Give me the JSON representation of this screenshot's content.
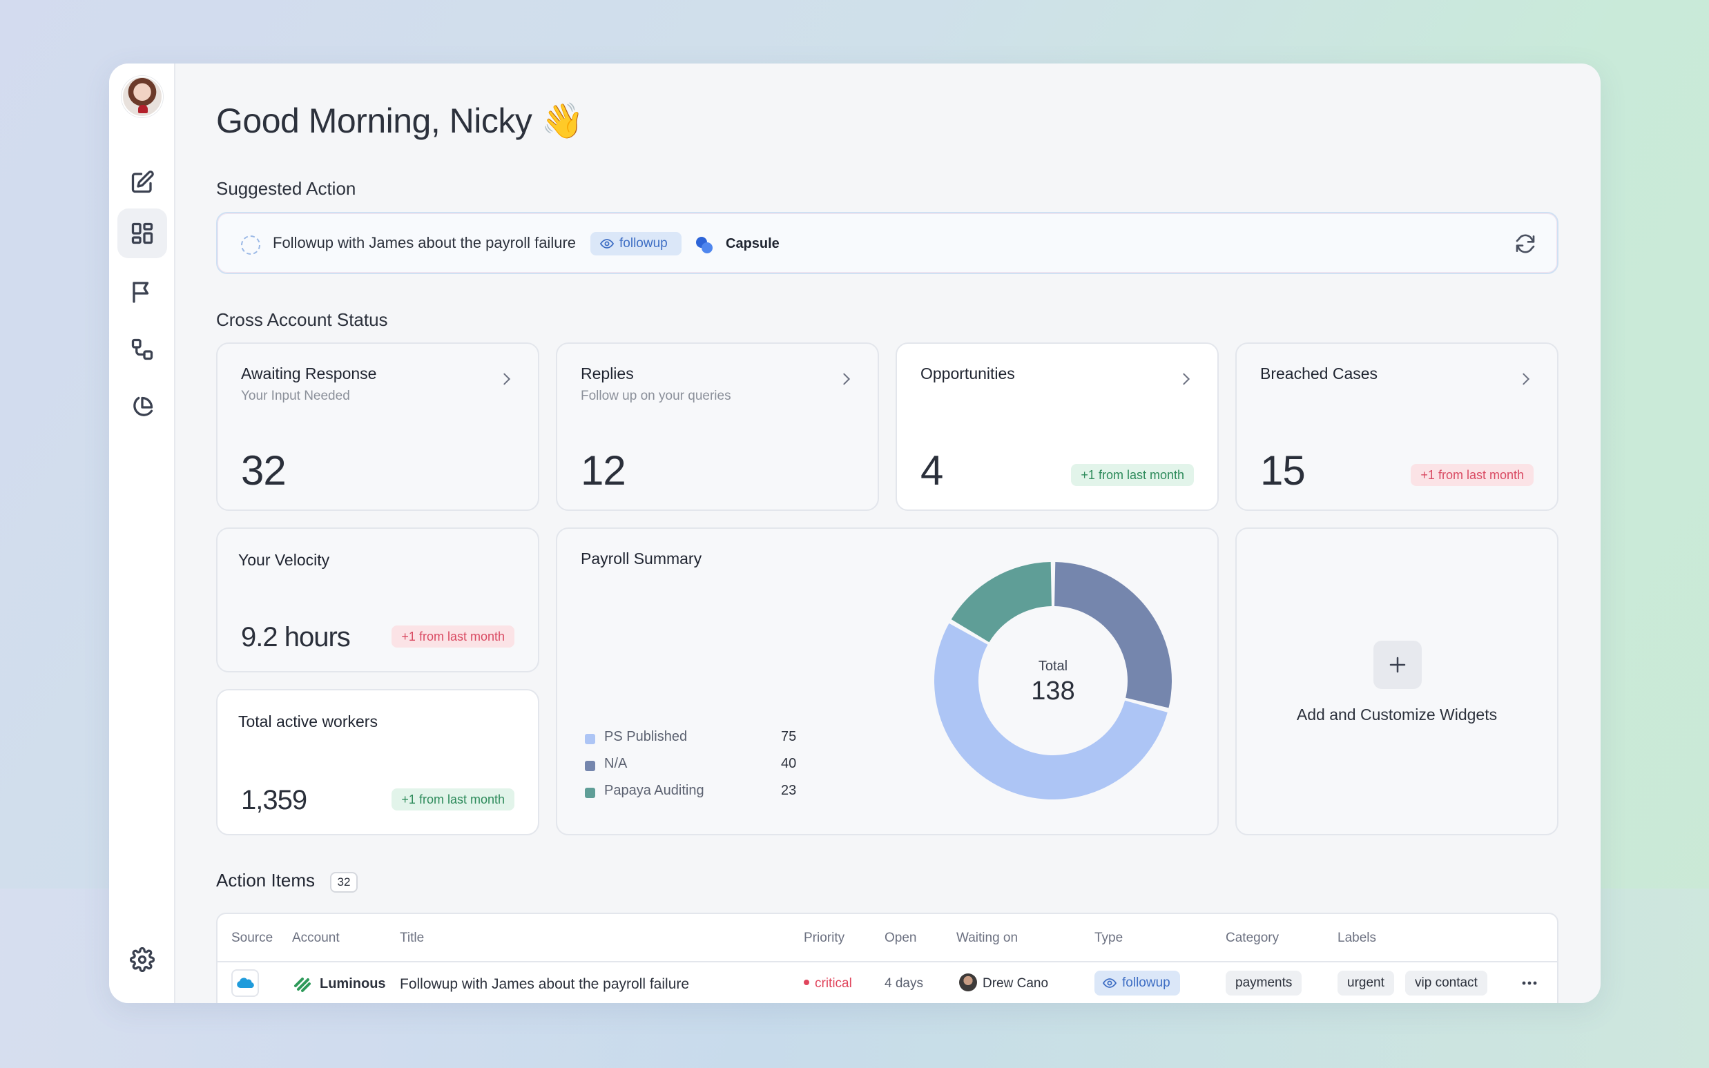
{
  "greeting": "Good Morning, Nicky 👋",
  "suggested": {
    "section_title": "Suggested Action",
    "text": "Followup with James about the payroll failure",
    "tag": "followup",
    "account": "Capsule"
  },
  "cross_account": {
    "section_title": "Cross Account Status",
    "cards": [
      {
        "title": "Awaiting Response",
        "subtitle": "Your Input Needed",
        "value": "32"
      },
      {
        "title": "Replies",
        "subtitle": "Follow up on your queries",
        "value": "12"
      },
      {
        "title": "Opportunities",
        "value": "4",
        "badge": "+1 from last month"
      },
      {
        "title": "Breached Cases",
        "value": "15",
        "badge": "+1 from last month"
      }
    ]
  },
  "velocity": {
    "title": "Your Velocity",
    "value": "9.2 hours",
    "badge": "+1 from last month"
  },
  "workers": {
    "title": "Total active workers",
    "value": "1,359",
    "badge": "+1 from last month"
  },
  "payroll": {
    "title": "Payroll Summary",
    "total_label": "Total",
    "total_value": "138",
    "legend": [
      {
        "label": "PS Published",
        "value": "75",
        "color": "#adc5f5"
      },
      {
        "label": "N/A",
        "value": "40",
        "color": "#7586ad"
      },
      {
        "label": "Papaya Auditing",
        "value": "23",
        "color": "#5f9e97"
      }
    ]
  },
  "widgets": {
    "label": "Add and Customize Widgets"
  },
  "action_items": {
    "title": "Action Items",
    "count": "32",
    "columns": [
      "Source",
      "Account",
      "Title",
      "Priority",
      "Open",
      "Waiting on",
      "Type",
      "Category",
      "Labels"
    ],
    "rows": [
      {
        "account": "Luminous",
        "title": "Followup with James about the payroll failure",
        "priority": "critical",
        "open": "4 days",
        "waiting_on": "Drew Cano",
        "type": "followup",
        "category": "payments",
        "labels": [
          "urgent",
          "vip contact"
        ]
      }
    ]
  },
  "colors": {
    "accent_blue": "#3e6ec4",
    "green_badge": "#2c8a5a",
    "red_badge": "#d94a62"
  }
}
